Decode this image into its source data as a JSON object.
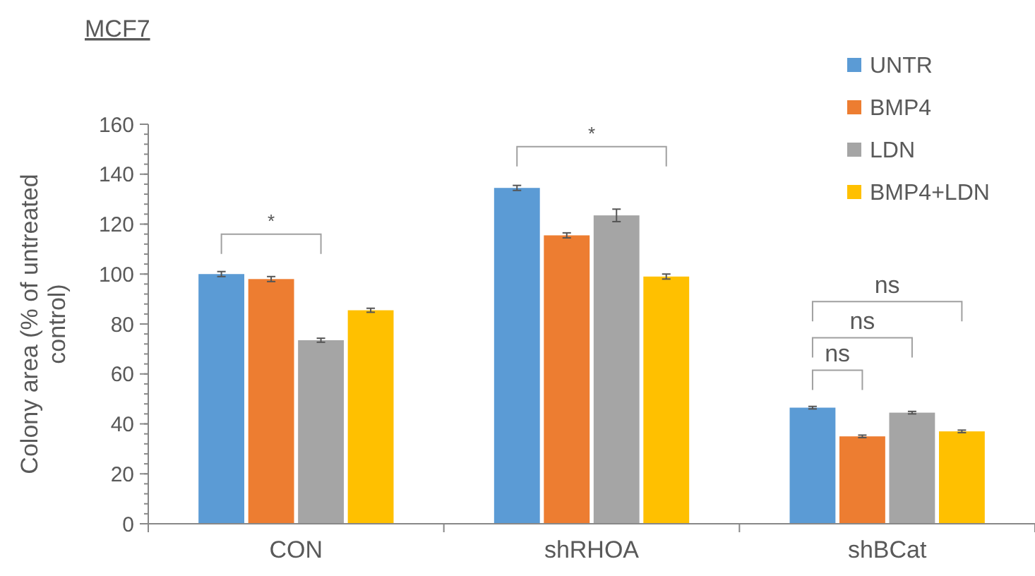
{
  "chart_data": {
    "type": "bar",
    "title": "MCF7",
    "ylabel": "Colony area (% of untreated control)",
    "categories": [
      "CON",
      "shRHOA",
      "shBCat"
    ],
    "series": [
      {
        "name": "UNTR",
        "color": "#5b9bd5",
        "values": [
          100,
          134.5,
          46.5
        ],
        "errors": [
          1,
          1,
          0.5
        ]
      },
      {
        "name": "BMP4",
        "color": "#ed7d31",
        "values": [
          98,
          115.5,
          35
        ],
        "errors": [
          1,
          1,
          0.5
        ]
      },
      {
        "name": "LDN",
        "color": "#a5a5a5",
        "values": [
          73.5,
          123.5,
          44.5
        ],
        "errors": [
          0.8,
          2.5,
          0.5
        ]
      },
      {
        "name": "BMP4+LDN",
        "color": "#ffc000",
        "values": [
          85.5,
          99,
          37
        ],
        "errors": [
          0.8,
          1,
          0.5
        ]
      }
    ],
    "ylim": [
      0,
      160
    ],
    "yticks": [
      0,
      20,
      40,
      60,
      80,
      100,
      120,
      140,
      160
    ],
    "grid": false,
    "legend": "top right",
    "annotations": [
      "*",
      "*",
      "ns",
      "ns",
      "ns"
    ]
  }
}
